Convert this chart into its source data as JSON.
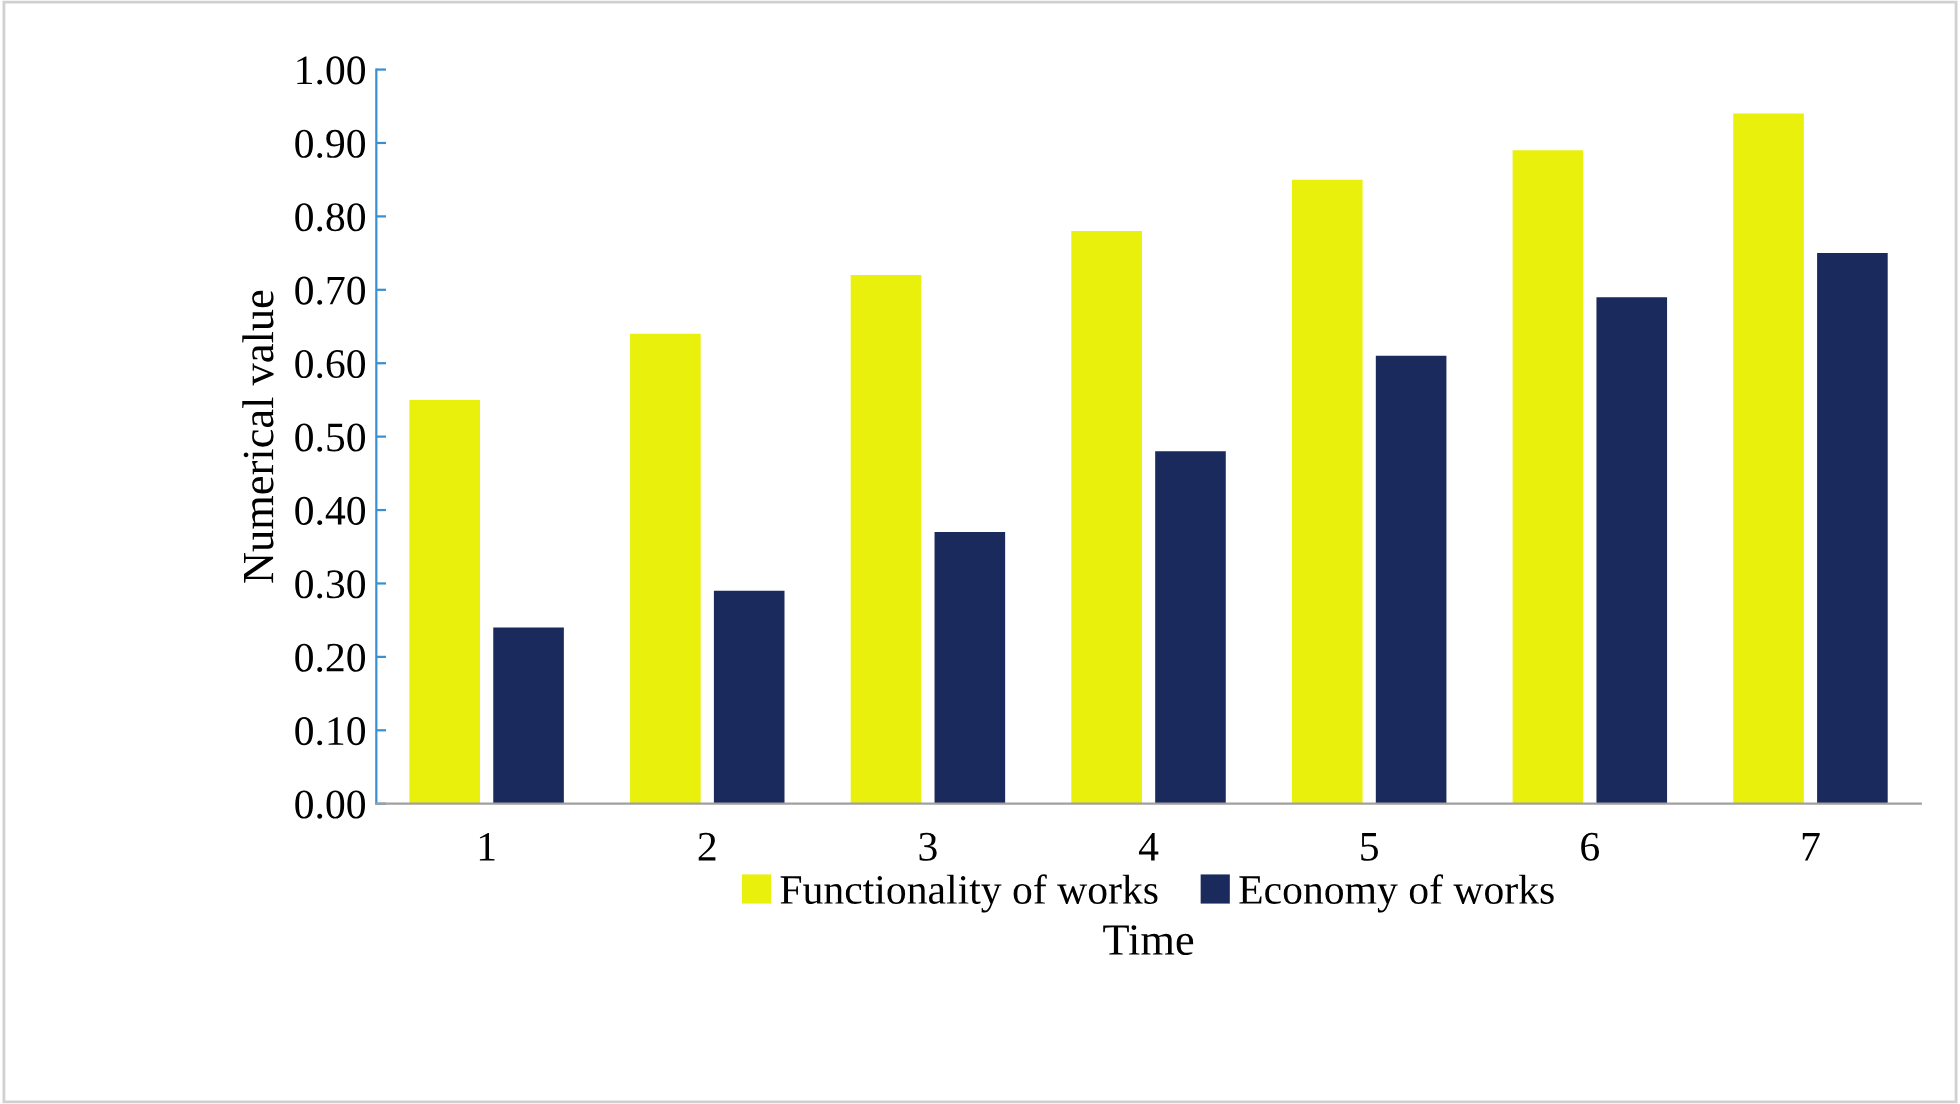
{
  "chart_data": {
    "type": "bar",
    "xlabel": "Time",
    "ylabel": "Numerical value",
    "categories": [
      "1",
      "2",
      "3",
      "4",
      "5",
      "6",
      "7"
    ],
    "series": [
      {
        "name": "Functionality of works",
        "color": "#e8f00c",
        "values": [
          0.55,
          0.64,
          0.72,
          0.78,
          0.85,
          0.89,
          0.94
        ]
      },
      {
        "name": "Economy of works",
        "color": "#1b2a5c",
        "values": [
          0.24,
          0.29,
          0.37,
          0.48,
          0.61,
          0.69,
          0.75
        ]
      }
    ],
    "ylim": [
      0,
      1
    ],
    "yticks": [
      {
        "value": 0,
        "label": "0.00"
      },
      {
        "value": 0.1,
        "label": "0.10"
      },
      {
        "value": 0.2,
        "label": "0.20"
      },
      {
        "value": 0.3,
        "label": "0.30"
      },
      {
        "value": 0.4,
        "label": "0.40"
      },
      {
        "value": 0.5,
        "label": "0.50"
      },
      {
        "value": 0.6,
        "label": "0.60"
      },
      {
        "value": 0.7,
        "label": "0.70"
      },
      {
        "value": 0.8,
        "label": "0.80"
      },
      {
        "value": 0.9,
        "label": "0.90"
      },
      {
        "value": 1,
        "label": "1.00"
      }
    ],
    "grid": false,
    "legend": "bottom"
  }
}
